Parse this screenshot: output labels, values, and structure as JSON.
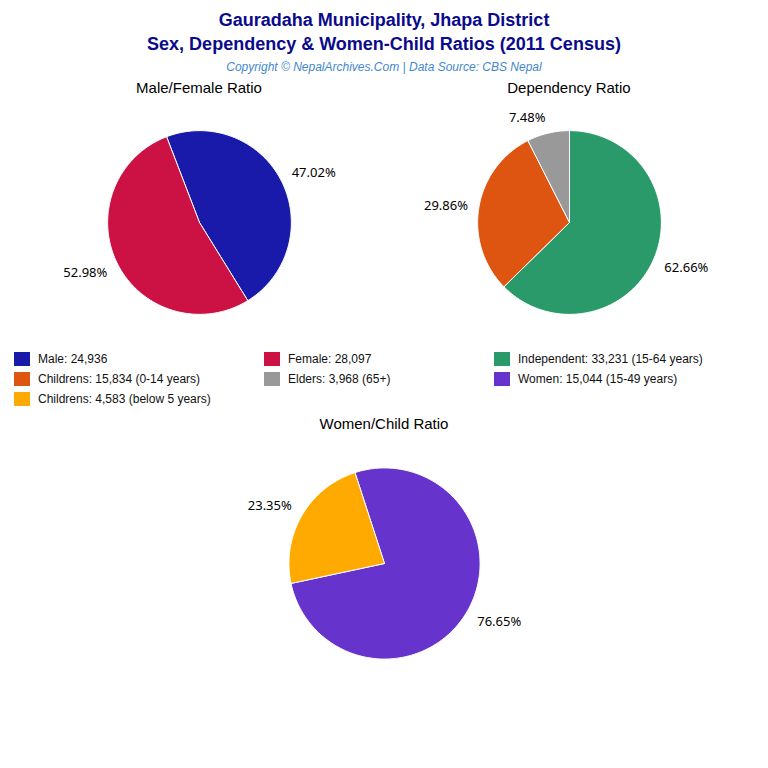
{
  "title": "Gauradaha Municipality, Jhapa District",
  "subtitle": "Sex, Dependency & Women-Child Ratios (2011 Census)",
  "caption": "Copyright © NepalArchives.Com | Data Source: CBS Nepal",
  "chart_data": [
    {
      "type": "pie",
      "title": "Male/Female Ratio",
      "categories": [
        "Male: 24,936",
        "Female: 28,097"
      ],
      "values": [
        47.02,
        52.98
      ],
      "value_labels": [
        "47.02%",
        "52.98%"
      ],
      "colors": [
        "#1a1aaa",
        "#cc1144"
      ],
      "data_labels": true,
      "legend": "bottom"
    },
    {
      "type": "pie",
      "title": "Dependency Ratio",
      "categories": [
        "Independent: 33,231 (15-64 years)",
        "Childrens: 15,834 (0-14 years)",
        "Elders: 3,968 (65+)"
      ],
      "values": [
        62.66,
        29.86,
        7.48
      ],
      "value_labels": [
        "62.66%",
        "29.86%",
        "7.48%"
      ],
      "colors": [
        "#2a9a6a",
        "#dd5511",
        "#999999"
      ],
      "data_labels": true,
      "legend": "bottom"
    },
    {
      "type": "pie",
      "title": "Women/Child Ratio",
      "categories": [
        "Women: 15,044 (15-49 years)",
        "Childrens: 4,583 (below 5 years)"
      ],
      "values": [
        76.65,
        23.35
      ],
      "value_labels": [
        "76.65%",
        "23.35%"
      ],
      "colors": [
        "#6633cc",
        "#ffaa00"
      ],
      "data_labels": true,
      "legend": "bottom"
    }
  ]
}
